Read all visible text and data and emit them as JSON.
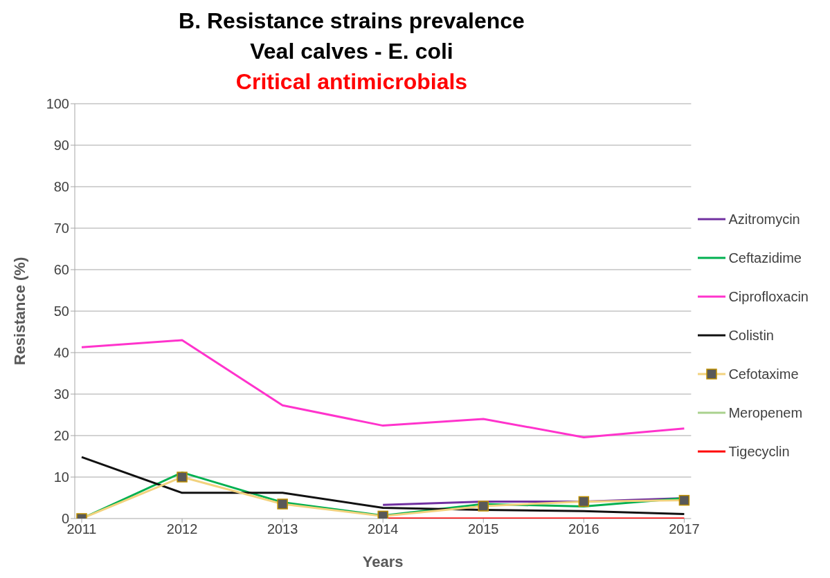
{
  "chart_data": {
    "type": "line",
    "title": "B. Resistance strains prevalence\nVeal calves - E. coli",
    "subtitle": "Critical antimicrobials",
    "xlabel": "Years",
    "ylabel": "Resistance (%)",
    "categories": [
      "2011",
      "2012",
      "2013",
      "2014",
      "2015",
      "2016",
      "2017"
    ],
    "series": [
      {
        "name": "Azitromycin",
        "color": "#7030a0",
        "values": [
          null,
          null,
          null,
          3.3,
          4.1,
          4.1,
          4.9
        ]
      },
      {
        "name": "Ceftazidime",
        "color": "#00b050",
        "values": [
          0,
          11.1,
          3.9,
          0.7,
          3.5,
          2.9,
          4.9
        ]
      },
      {
        "name": "Ciprofloxacin",
        "color": "#ff33cc",
        "values": [
          41.3,
          43,
          27.3,
          22.4,
          24,
          19.6,
          21.7
        ]
      },
      {
        "name": "Colistin",
        "color": "#111111",
        "values": [
          14.8,
          6.2,
          6.2,
          2.6,
          2.1,
          1.8,
          1.1
        ]
      },
      {
        "name": "Cefotaxime",
        "color": "#f2d27e",
        "marker": "square",
        "values": [
          0,
          10,
          3.5,
          0.6,
          3.0,
          4.1,
          4.4
        ]
      },
      {
        "name": "Meropenem",
        "color": "#a9d18e",
        "values": [
          null,
          null,
          null,
          null,
          null,
          null,
          null
        ]
      },
      {
        "name": "Tigecyclin",
        "color": "#ff0000",
        "values": [
          null,
          null,
          null,
          0,
          0,
          0,
          0
        ]
      }
    ],
    "ylim": [
      0,
      100
    ],
    "yticks": [
      0,
      10,
      20,
      30,
      40,
      50,
      60,
      70,
      80,
      90,
      100
    ],
    "grid": "y",
    "legend": "right",
    "marker": "none",
    "line_style": "solid"
  }
}
